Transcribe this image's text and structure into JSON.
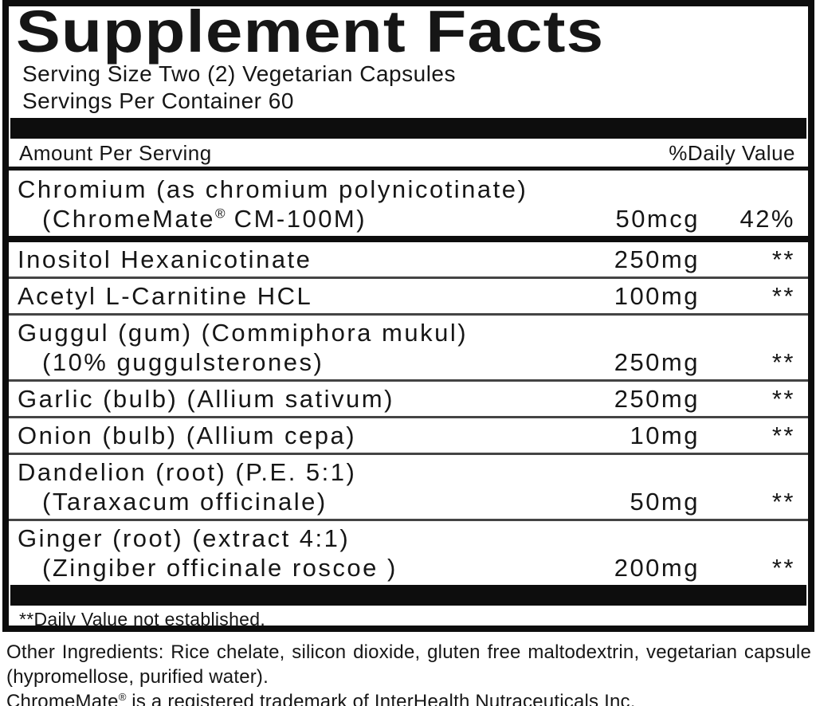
{
  "label": {
    "title": "Supplement Facts",
    "serving_size": "Serving Size Two (2) Vegetarian Capsules",
    "servings_per_container": "Servings Per Container 60",
    "column_headers": {
      "amount": "Amount Per Serving",
      "daily_value": "%Daily Value"
    },
    "rows": [
      {
        "line1": "Chromium (as chromium polynicotinate)",
        "line2_pre": "(ChromeMate",
        "line2_reg": "®",
        "line2_post": " CM-100M)",
        "amount": "50mcg",
        "daily_value": "42%"
      },
      {
        "line1": "Inositol Hexanicotinate",
        "amount": "250mg",
        "daily_value": "**"
      },
      {
        "line1": "Acetyl L-Carnitine HCL",
        "amount": "100mg",
        "daily_value": "**"
      },
      {
        "line1": "Guggul (gum) (Commiphora mukul)",
        "line2": "(10% guggulsterones)",
        "amount": "250mg",
        "daily_value": "**"
      },
      {
        "line1": "Garlic (bulb) (Allium sativum)",
        "amount": "250mg",
        "daily_value": "**"
      },
      {
        "line1": "Onion (bulb) (Allium cepa)",
        "amount": "10mg",
        "daily_value": "**"
      },
      {
        "line1": "Dandelion (root) (P.E. 5:1)",
        "line2": "(Taraxacum officinale)",
        "amount": "50mg",
        "daily_value": "**"
      },
      {
        "line1": "Ginger (root) (extract 4:1)",
        "line2": "(Zingiber officinale roscoe )",
        "amount": "200mg",
        "daily_value": "**"
      }
    ],
    "footnote": "**Daily Value not established."
  },
  "footer": {
    "other_ingredients": "Other Ingredients: Rice chelate, silicon dioxide, gluten free maltodextrin, vegetarian capsule (hypromellose, purified water).",
    "trademark_pre": "ChromeMate",
    "trademark_reg": "®",
    "trademark_post": " is a registered trademark of InterHealth Nutraceuticals Inc."
  },
  "colors": {
    "text": "#161616",
    "rule": "#0d0d0d",
    "background": "#ffffff"
  }
}
